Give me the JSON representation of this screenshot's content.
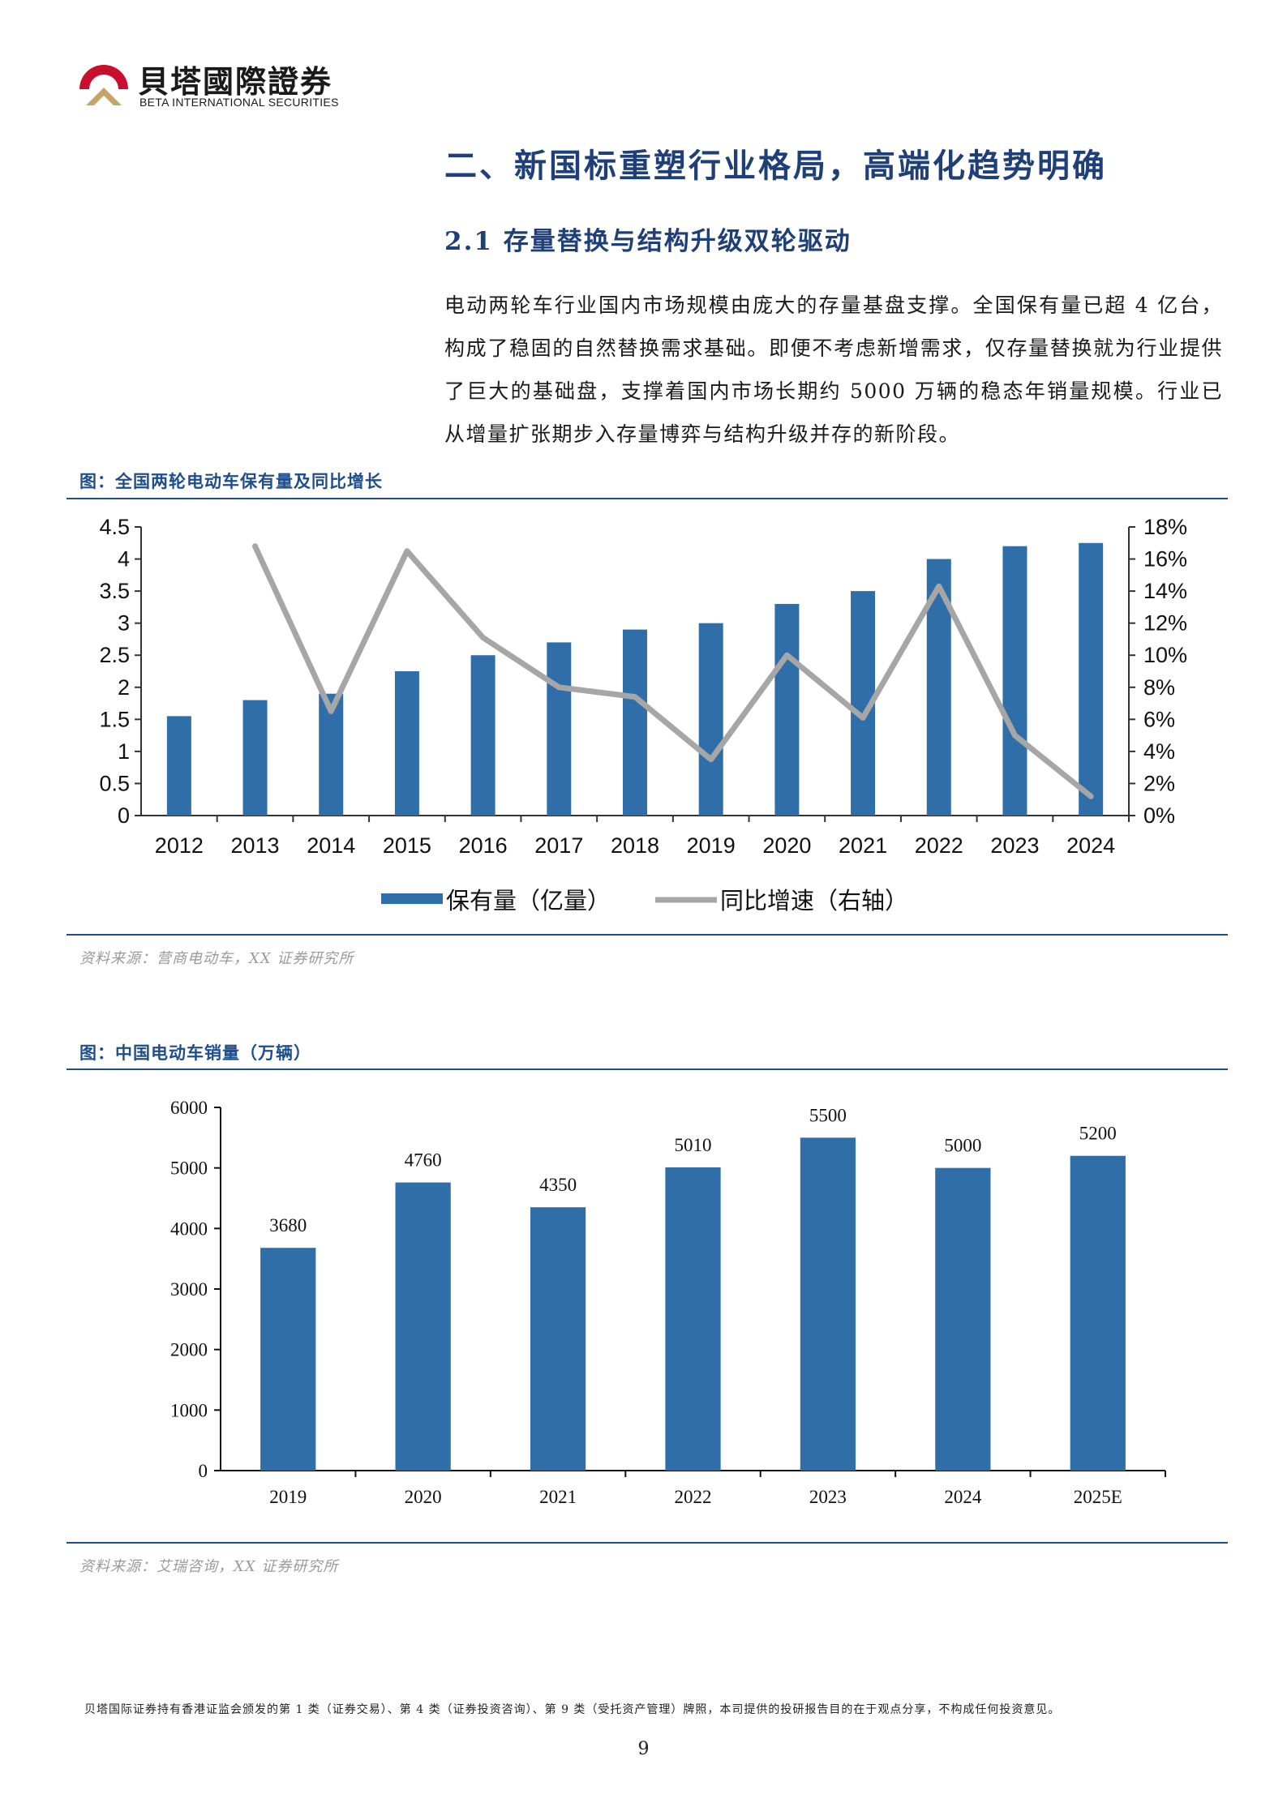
{
  "header": {
    "logo_cn": "貝塔國際證券",
    "logo_en": "BETA INTERNATIONAL SECURITIES"
  },
  "section": {
    "title": "二、新国标重塑行业格局，高端化趋势明确",
    "subtitle": "2.1 存量替换与结构升级双轮驱动",
    "paragraph": "电动两轮车行业国内市场规模由庞大的存量基盘支撑。全国保有量已超 4 亿台，构成了稳固的自然替换需求基础。即便不考虑新增需求，仅存量替换就为行业提供了巨大的基础盘，支撑着国内市场长期约 5000 万辆的稳态年销量规模。行业已从增量扩张期步入存量博弈与结构升级并存的新阶段。"
  },
  "figures": [
    {
      "title": "图：全国两轮电动车保有量及同比增长",
      "source": "资料来源：营商电动车，XX 证券研究所"
    },
    {
      "title": "图：中国电动车销量（万辆）",
      "source": "资料来源：艾瑞咨询，XX 证券研究所"
    }
  ],
  "colors": {
    "bar": "#2f6ea9",
    "line": "#a6a6a6",
    "accent": "#1f4e8c",
    "logo_red": "#c8102e",
    "logo_gold": "#c8a36a"
  },
  "chart_data": [
    {
      "type": "bar+line",
      "title": "图：全国两轮电动车保有量及同比增长",
      "categories": [
        "2012",
        "2013",
        "2014",
        "2015",
        "2016",
        "2017",
        "2018",
        "2019",
        "2020",
        "2021",
        "2022",
        "2023",
        "2024"
      ],
      "series": [
        {
          "name": "保有量（亿量）",
          "type": "bar",
          "axis": "left",
          "values": [
            1.55,
            1.8,
            1.9,
            2.25,
            2.5,
            2.7,
            2.9,
            3.0,
            3.3,
            3.5,
            4.0,
            4.2,
            4.25
          ]
        },
        {
          "name": "同比增速（右轴）",
          "type": "line",
          "axis": "right",
          "values": [
            null,
            16.8,
            6.5,
            16.5,
            11.1,
            8.0,
            7.4,
            3.5,
            10.0,
            6.1,
            14.3,
            5.0,
            1.2
          ]
        }
      ],
      "yleft": {
        "min": 0,
        "max": 4.5,
        "ticks": [
          "0",
          "0.5",
          "1",
          "1.5",
          "2",
          "2.5",
          "3",
          "3.5",
          "4",
          "4.5"
        ]
      },
      "yright": {
        "min": 0,
        "max": 18,
        "ticks": [
          "0%",
          "2%",
          "4%",
          "6%",
          "8%",
          "10%",
          "12%",
          "14%",
          "16%",
          "18%"
        ]
      },
      "legend_position": "bottom"
    },
    {
      "type": "bar",
      "title": "图：中国电动车销量（万辆）",
      "categories": [
        "2019",
        "2020",
        "2021",
        "2022",
        "2023",
        "2024",
        "2025E"
      ],
      "values": [
        3680,
        4760,
        4350,
        5010,
        5500,
        5000,
        5200
      ],
      "data_labels": [
        "3680",
        "4760",
        "4350",
        "5010",
        "5500",
        "5000",
        "5200"
      ],
      "ylim": [
        0,
        6000
      ],
      "yticks": [
        "0",
        "1000",
        "2000",
        "3000",
        "4000",
        "5000",
        "6000"
      ]
    }
  ],
  "footer": {
    "disclaimer": "贝塔国际证券持有香港证监会颁发的第 1 类（证券交易）、第 4 类（证券投资咨询）、第 9 类（受托资产管理）牌照，本司提供的投研报告目的在于观点分享，不构成任何投资意见。",
    "page_number": "9"
  }
}
